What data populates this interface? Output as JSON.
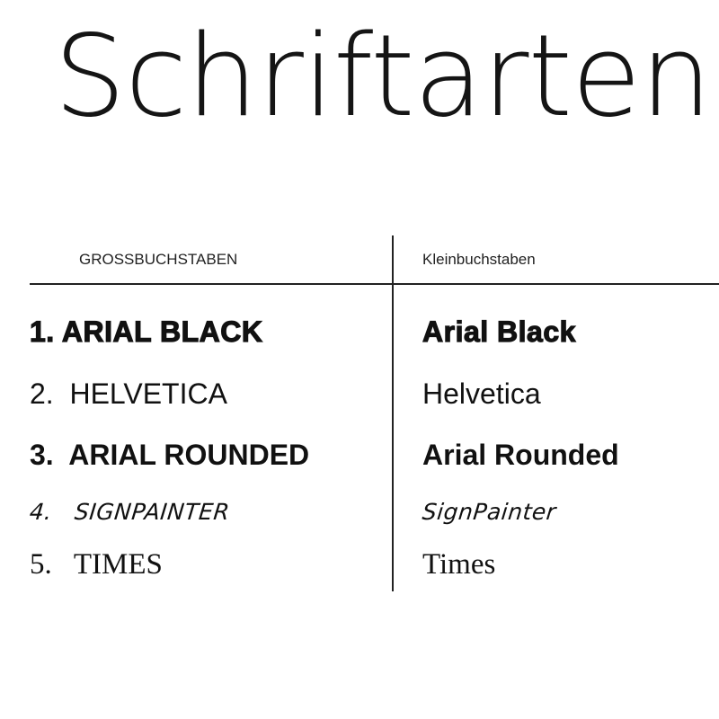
{
  "title": "Schriftarten",
  "columns": {
    "upper": "GROSSBUCHSTABEN",
    "lower": "Kleinbuchstaben"
  },
  "rows": [
    {
      "upper": "1. ARIAL BLACK",
      "lower": "Arial Black"
    },
    {
      "upper": "2.  HELVETICA",
      "lower": "Helvetica"
    },
    {
      "upper": "3.  ARIAL ROUNDED",
      "lower": "Arial Rounded"
    },
    {
      "upper": "4.   SIGNPAINTER",
      "lower": "SignPainter"
    },
    {
      "upper": "5.   TIMES",
      "lower": "Times"
    }
  ]
}
